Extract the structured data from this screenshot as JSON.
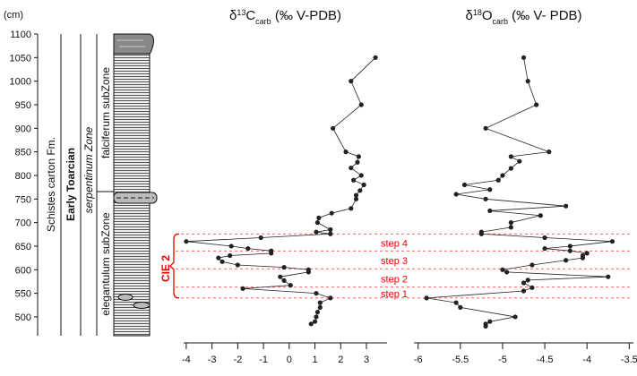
{
  "depth_axis": {
    "label": "(cm)",
    "lim": [
      460,
      1100
    ],
    "ticks": [
      500,
      550,
      600,
      650,
      700,
      750,
      800,
      850,
      900,
      950,
      1000,
      1050,
      1100
    ]
  },
  "stratigraphy": {
    "formation": "Schistes carton Fm.",
    "stage": "Early  Toarcian",
    "zone": "serpentinum Zone",
    "subzone_lower": "elegantulum subZone",
    "subzone_upper": "falciferum subZone"
  },
  "annotations": {
    "cie": "CIE 2",
    "steps": [
      "step 1",
      "step 2",
      "step 3",
      "step 4"
    ],
    "step_boundaries": [
      540,
      563,
      602,
      640,
      676
    ]
  },
  "chart_data": [
    {
      "type": "line",
      "title": [
        "δ",
        "13",
        "C",
        "carb",
        " (‰ V-PDB)"
      ],
      "color": "#222222",
      "xlim": [
        -4.1,
        3.8
      ],
      "xticks": [
        -4,
        -3,
        -2,
        -1,
        0,
        1,
        2,
        3
      ],
      "depths": [
        1050,
        1000,
        950,
        900,
        850,
        840,
        828,
        816,
        800,
        790,
        780,
        768,
        758,
        750,
        730,
        720,
        710,
        700,
        685,
        680,
        676,
        668,
        660,
        650,
        645,
        640,
        635,
        630,
        625,
        617,
        610,
        605,
        600,
        595,
        585,
        577,
        567,
        560,
        550,
        540,
        530,
        520,
        510,
        500,
        490,
        485
      ],
      "values": [
        3.35,
        2.4,
        2.8,
        1.7,
        2.2,
        2.7,
        2.65,
        2.4,
        2.8,
        2.5,
        2.9,
        2.75,
        2.6,
        2.6,
        2.4,
        1.65,
        1.15,
        1.1,
        1.6,
        1.05,
        1.6,
        -1.1,
        -4.0,
        -2.25,
        -1.6,
        -0.7,
        -0.7,
        -2.3,
        -2.75,
        -2.6,
        -2.0,
        -0.2,
        0.75,
        0.75,
        -0.35,
        -0.2,
        0.05,
        -1.8,
        1.05,
        1.6,
        1.2,
        1.2,
        1.1,
        1.05,
        1.0,
        0.85
      ]
    },
    {
      "type": "line",
      "title": [
        "δ",
        "18",
        "O",
        "carb",
        " (‰ V- PDB)"
      ],
      "color": "#222222",
      "xlim": [
        -6.05,
        -3.45
      ],
      "xticks": [
        -6,
        -5.5,
        -5,
        -4.5,
        -4,
        -3.5
      ],
      "depths": [
        1050,
        1000,
        950,
        900,
        850,
        840,
        830,
        815,
        800,
        790,
        780,
        770,
        760,
        750,
        735,
        725,
        715,
        700,
        690,
        680,
        676,
        668,
        660,
        650,
        645,
        640,
        635,
        630,
        625,
        620,
        610,
        600,
        595,
        585,
        578,
        572,
        562,
        555,
        540,
        530,
        520,
        500,
        490,
        485,
        480
      ],
      "values": [
        -4.75,
        -4.7,
        -4.6,
        -5.2,
        -4.45,
        -4.9,
        -4.8,
        -4.9,
        -5.0,
        -5.05,
        -5.45,
        -5.15,
        -5.55,
        -5.2,
        -4.25,
        -5.15,
        -4.55,
        -4.9,
        -4.9,
        -5.25,
        -5.25,
        -4.5,
        -3.7,
        -4.2,
        -4.5,
        -4.2,
        -4.0,
        -4.05,
        -4.05,
        -4.25,
        -4.65,
        -5.0,
        -4.95,
        -3.75,
        -4.7,
        -4.75,
        -4.65,
        -4.75,
        -5.9,
        -5.55,
        -5.5,
        -4.85,
        -5.15,
        -5.2,
        -5.2
      ]
    }
  ]
}
